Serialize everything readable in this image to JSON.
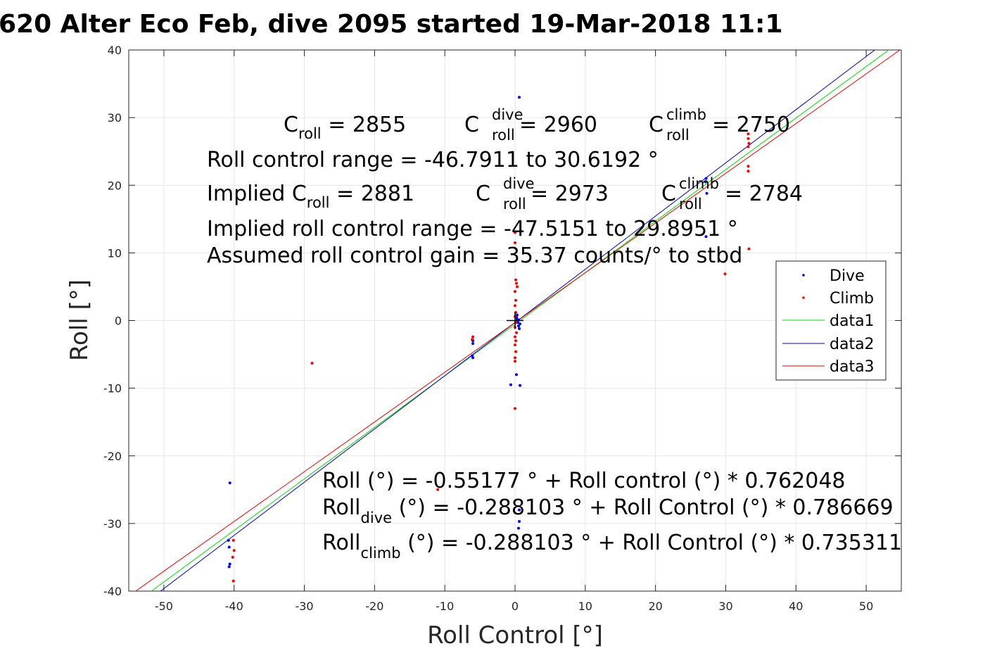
{
  "chart_data": {
    "type": "scatter",
    "title": "620 Alter Eco Feb, dive 2095 started 19-Mar-2018 11:1",
    "xlabel": "Roll Control [°]",
    "ylabel": "Roll [°]",
    "xlim": [
      -55,
      55
    ],
    "ylim": [
      -40,
      40
    ],
    "xticks": [
      -50,
      -40,
      -30,
      -20,
      -10,
      0,
      10,
      20,
      30,
      40,
      50
    ],
    "yticks": [
      -40,
      -30,
      -20,
      -10,
      0,
      10,
      20,
      30,
      40
    ],
    "grid": true,
    "legend_position": "right",
    "colors": {
      "dive": "#0000ff",
      "climb": "#ff0000",
      "data1": "#00dd00",
      "data2": "#0000cc",
      "data3": "#ee0000"
    },
    "series": [
      {
        "name": "Dive",
        "marker": "dot",
        "color": "#0000ff",
        "points": [
          [
            0.6,
            33.0
          ],
          [
            0.2,
            0.5
          ],
          [
            0.3,
            0.2
          ],
          [
            0.4,
            -0.3
          ],
          [
            0.5,
            -0.8
          ],
          [
            0.6,
            -1.2
          ],
          [
            0.3,
            0.8
          ],
          [
            0.5,
            0.1
          ],
          [
            0.7,
            -0.5
          ],
          [
            0.2,
            -8.0
          ],
          [
            -0.6,
            -9.5
          ],
          [
            0.7,
            -9.6
          ],
          [
            -6.0,
            -3.0
          ],
          [
            -6.0,
            -3.4
          ],
          [
            -6.1,
            -5.2
          ],
          [
            -6.0,
            -5.5
          ],
          [
            -40.6,
            -24.0
          ],
          [
            -40.8,
            -32.5
          ],
          [
            -40.7,
            -33.5
          ],
          [
            -40.6,
            -36.0
          ],
          [
            -40.7,
            -36.4
          ],
          [
            0.6,
            -28.0
          ],
          [
            0.6,
            -29.7
          ],
          [
            0.5,
            -30.7
          ],
          [
            27.2,
            21.0
          ],
          [
            27.1,
            20.5
          ],
          [
            27.3,
            18.8
          ],
          [
            27.2,
            12.4
          ]
        ]
      },
      {
        "name": "Climb",
        "marker": "dot",
        "color": "#ff0000",
        "points": [
          [
            0.0,
            13.0
          ],
          [
            0.0,
            11.5
          ],
          [
            0.1,
            6.0
          ],
          [
            0.2,
            5.5
          ],
          [
            0.3,
            5.0
          ],
          [
            0.0,
            4.3
          ],
          [
            0.1,
            3.0
          ],
          [
            0.0,
            2.2
          ],
          [
            0.1,
            1.2
          ],
          [
            0.0,
            0.6
          ],
          [
            0.1,
            -0.3
          ],
          [
            0.0,
            -1.0
          ],
          [
            0.2,
            -1.8
          ],
          [
            0.0,
            -2.4
          ],
          [
            0.1,
            -3.0
          ],
          [
            0.0,
            -3.6
          ],
          [
            0.1,
            -4.6
          ],
          [
            0.0,
            -5.5
          ],
          [
            0.0,
            -6.0
          ],
          [
            0.0,
            -13.0
          ],
          [
            -6.0,
            -2.4
          ],
          [
            -6.1,
            -2.8
          ],
          [
            -28.9,
            -6.3
          ],
          [
            -11.0,
            -25.0
          ],
          [
            -40.1,
            -32.5
          ],
          [
            -40.0,
            -34.0
          ],
          [
            -40.2,
            -35.0
          ],
          [
            -40.1,
            -38.5
          ],
          [
            29.9,
            6.9
          ],
          [
            33.2,
            27.6
          ],
          [
            33.2,
            26.9
          ],
          [
            33.3,
            26.2
          ],
          [
            33.2,
            25.7
          ],
          [
            33.2,
            22.8
          ],
          [
            33.2,
            22.1
          ],
          [
            33.3,
            10.6
          ]
        ]
      },
      {
        "name": "data1",
        "type": "line",
        "color": "#00dd00",
        "points": [
          [
            -55,
            -42.46
          ],
          [
            55,
            41.36
          ]
        ]
      },
      {
        "name": "data2",
        "type": "line",
        "color": "#0000cc",
        "points": [
          [
            -55,
            -43.56
          ],
          [
            55,
            42.98
          ]
        ]
      },
      {
        "name": "data3",
        "type": "line",
        "color": "#ee0000",
        "points": [
          [
            -55,
            -40.73
          ],
          [
            55,
            40.15
          ]
        ]
      }
    ],
    "crosshair": [
      0,
      0
    ],
    "annotations": {
      "top1": {
        "c_roll": "C",
        "c_roll_sub": "roll",
        "c_roll_val": " = 2855",
        "c_dive": "C",
        "c_dive_sup": "dive",
        "c_dive_sub": "roll",
        "c_dive_val": " = 2960",
        "c_climb": "C",
        "c_climb_sup": "climb",
        "c_climb_sub": "roll",
        "c_climb_val": " = 2750"
      },
      "top2": "Roll control range = -46.7911 to 30.6192 °",
      "top3": {
        "prefix": "Implied C",
        "c_roll_sub": "roll",
        "c_roll_val": " = 2881",
        "c_dive": "C",
        "c_dive_sup": "dive",
        "c_dive_sub": "roll",
        "c_dive_val": " = 2973",
        "c_climb": "C",
        "c_climb_sup": "climb",
        "c_climb_sub": "roll",
        "c_climb_val": " = 2784"
      },
      "top4": "Implied roll control range = -47.5151 to 29.8951 °",
      "top5": "Assumed roll control gain = 35.37 counts/° to stbd",
      "bot1": "Roll (°) = -0.55177 ° + Roll control (°) * 0.762048",
      "bot2": {
        "main": "Roll",
        "sub": "dive",
        "rest": " (°) = -0.288103 ° + Roll Control (°) * 0.786669"
      },
      "bot3": {
        "main": "Roll",
        "sub": "climb",
        "rest": " (°) = -0.288103 ° + Roll Control (°) * 0.735311"
      }
    }
  }
}
